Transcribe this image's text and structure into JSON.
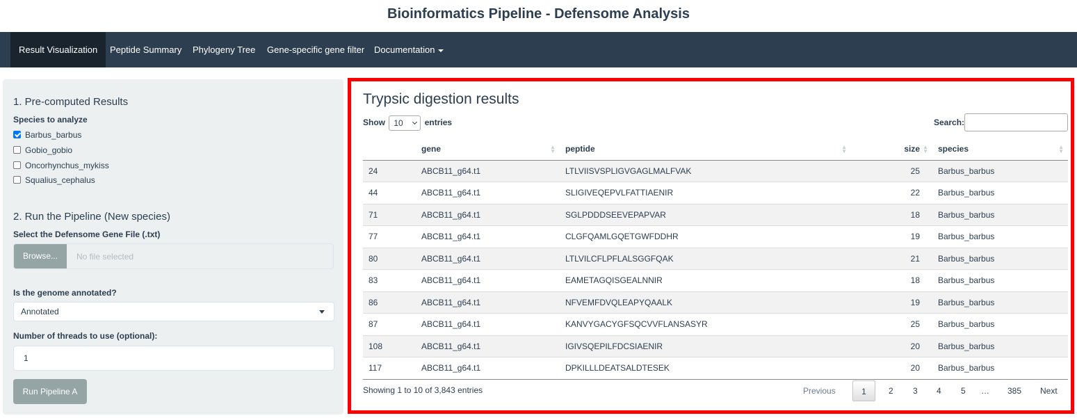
{
  "app": {
    "title": "Bioinformatics Pipeline - Defensome Analysis"
  },
  "navbar": {
    "tabs": [
      {
        "label": "Result Visualization",
        "active": true
      },
      {
        "label": "Peptide Summary"
      },
      {
        "label": "Phylogeny Tree"
      },
      {
        "label": "Gene-specific gene filter"
      },
      {
        "label": "Documentation",
        "dropdown": true
      }
    ]
  },
  "sidebar": {
    "section1_title": "1. Pre-computed Results",
    "species_label": "Species to analyze",
    "species": [
      {
        "name": "Barbus_barbus",
        "checked": true
      },
      {
        "name": "Gobio_gobio",
        "checked": false
      },
      {
        "name": "Oncorhynchus_mykiss",
        "checked": false
      },
      {
        "name": "Squalius_cephalus",
        "checked": false
      }
    ],
    "section2_title": "2. Run the Pipeline (New species)",
    "file_label": "Select the Defensome Gene File (.txt)",
    "browse_label": "Browse...",
    "file_placeholder": "No file selected",
    "annotated_label": "Is the genome annotated?",
    "annotated_value": "Annotated",
    "threads_label": "Number of threads to use (optional):",
    "threads_value": "1",
    "run_label": "Run Pipeline A"
  },
  "results": {
    "title": "Trypsic digestion results",
    "show_label": "Show",
    "page_length": "10",
    "entries_label": "entries",
    "search_label": "Search:",
    "columns": [
      "",
      "gene",
      "peptide",
      "size",
      "species"
    ],
    "rows": [
      [
        "24",
        "ABCB11_g64.t1",
        "LTLVIISVSPLIGVGAGLMALFVAK",
        "25",
        "Barbus_barbus"
      ],
      [
        "44",
        "ABCB11_g64.t1",
        "SLIGIVEQEPVLFATTIAENIR",
        "22",
        "Barbus_barbus"
      ],
      [
        "71",
        "ABCB11_g64.t1",
        "SGLPDDDSEEVEPAPVAR",
        "18",
        "Barbus_barbus"
      ],
      [
        "77",
        "ABCB11_g64.t1",
        "CLGFQAMLGQETGWFDDHR",
        "19",
        "Barbus_barbus"
      ],
      [
        "80",
        "ABCB11_g64.t1",
        "LTLVILCFLPFLALSGGFQAK",
        "21",
        "Barbus_barbus"
      ],
      [
        "83",
        "ABCB11_g64.t1",
        "EAMETAGQISGEALNNIR",
        "18",
        "Barbus_barbus"
      ],
      [
        "86",
        "ABCB11_g64.t1",
        "NFVEMFDVQLEAPYQAALK",
        "19",
        "Barbus_barbus"
      ],
      [
        "87",
        "ABCB11_g64.t1",
        "KANVYGACYGFSQCVVFLANSASYR",
        "25",
        "Barbus_barbus"
      ],
      [
        "108",
        "ABCB11_g64.t1",
        "IGIVSQEPILFDCSIAENIR",
        "20",
        "Barbus_barbus"
      ],
      [
        "117",
        "ABCB11_g64.t1",
        "DPKILLLDEATSALDTESEK",
        "20",
        "Barbus_barbus"
      ]
    ],
    "info": "Showing 1 to 10 of 3,843 entries",
    "pagination": {
      "previous": "Previous",
      "pages": [
        "1",
        "2",
        "3",
        "4",
        "5",
        "…",
        "385"
      ],
      "current": "1",
      "next": "Next"
    }
  }
}
